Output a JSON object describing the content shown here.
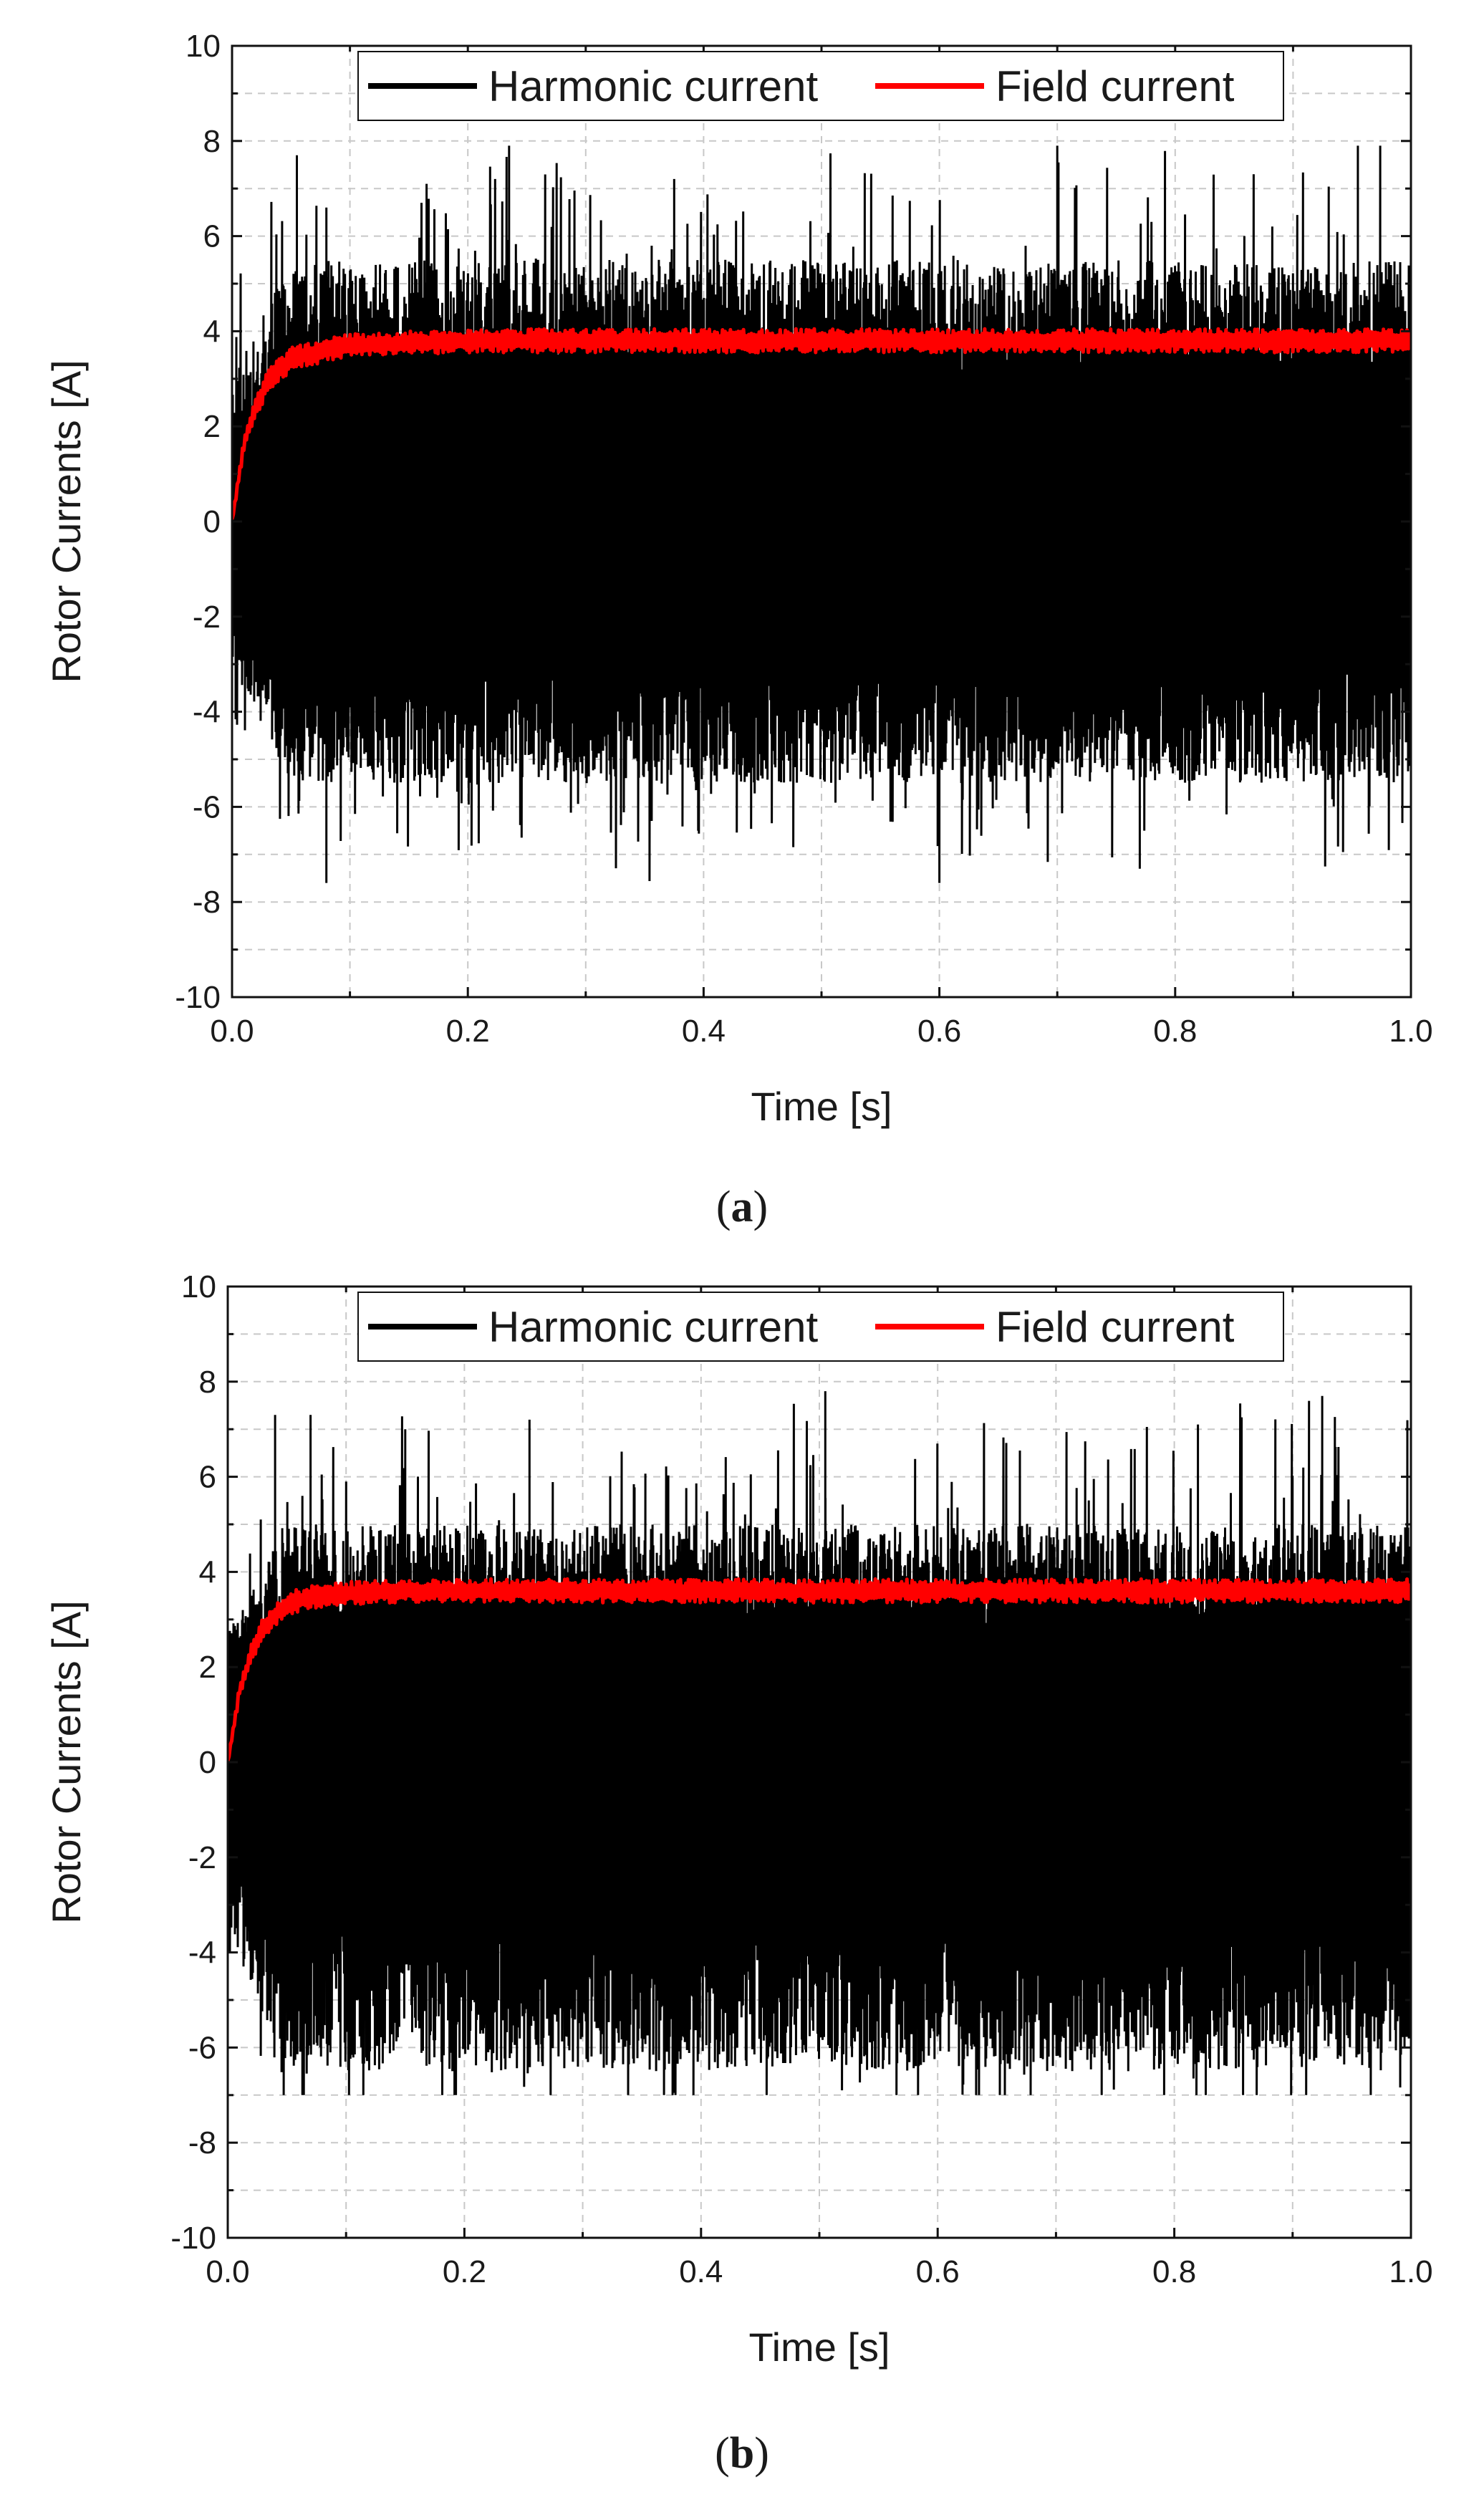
{
  "chart_data": [
    {
      "type": "line",
      "caption": "a",
      "xlabel": "Time [s]",
      "ylabel": "Rotor Currents [A]",
      "xlim": [
        0.0,
        1.0
      ],
      "ylim": [
        -10,
        10
      ],
      "x_ticks": [
        "0.0",
        "0.2",
        "0.4",
        "0.6",
        "0.8",
        "1.0"
      ],
      "y_ticks": [
        "10",
        "8",
        "6",
        "4",
        "2",
        "0",
        "-2",
        "-4",
        "-6",
        "-8",
        "-10"
      ],
      "grid": true,
      "legend_position": "top",
      "series": [
        {
          "name": "Harmonic current",
          "color": "#000000",
          "description_values": {
            "upper_envelope_typical": 5.5,
            "lower_envelope_typical": -5.5,
            "max_peak": 7.9,
            "min_peak": -7.6
          },
          "peaks": [
            {
              "x": 0.055,
              "y": 7.7
            },
            {
              "x": 0.08,
              "y": 6.6
            },
            {
              "x": 0.165,
              "y": 7.1
            },
            {
              "x": 0.235,
              "y": 7.9
            },
            {
              "x": 0.375,
              "y": 7.2
            },
            {
              "x": 0.7,
              "y": 7.9
            },
            {
              "x": 0.955,
              "y": 7.9
            },
            {
              "x": 0.6,
              "y": -7.6
            },
            {
              "x": 0.08,
              "y": -7.6
            },
            {
              "x": 0.77,
              "y": -7.3
            }
          ]
        },
        {
          "name": "Field current",
          "color": "#ff0000",
          "x": [
            0.0,
            0.01,
            0.02,
            0.03,
            0.04,
            0.05,
            0.06,
            0.08,
            0.1,
            0.15,
            0.2,
            0.4,
            0.6,
            0.8,
            1.0
          ],
          "y": [
            0.0,
            1.6,
            2.4,
            2.9,
            3.2,
            3.4,
            3.5,
            3.6,
            3.7,
            3.75,
            3.8,
            3.8,
            3.8,
            3.8,
            3.8
          ],
          "ripple": 0.25
        }
      ]
    },
    {
      "type": "line",
      "caption": "b",
      "xlabel": "Time [s]",
      "ylabel": "Rotor Currents [A]",
      "xlim": [
        0.0,
        1.0
      ],
      "ylim": [
        -10,
        10
      ],
      "x_ticks": [
        "0.0",
        "0.2",
        "0.4",
        "0.6",
        "0.8",
        "1.0"
      ],
      "y_ticks": [
        "10",
        "8",
        "6",
        "4",
        "2",
        "0",
        "-2",
        "-4",
        "-6",
        "-8",
        "-10"
      ],
      "grid": true,
      "legend_position": "top",
      "series": [
        {
          "name": "Harmonic current",
          "color": "#000000",
          "description_values": {
            "upper_envelope_typical": 5.0,
            "lower_envelope_typical": -6.5,
            "max_peak": 7.8,
            "min_peak": -7.0
          },
          "peaks": [
            {
              "x": 0.04,
              "y": 7.3
            },
            {
              "x": 0.07,
              "y": 7.3
            },
            {
              "x": 0.15,
              "y": 7.0
            },
            {
              "x": 0.255,
              "y": 7.2
            },
            {
              "x": 0.505,
              "y": 7.8
            },
            {
              "x": 0.925,
              "y": 7.7
            },
            {
              "x": 0.82,
              "y": 7.1
            }
          ]
        },
        {
          "name": "Field current",
          "color": "#ff0000",
          "x": [
            0.0,
            0.01,
            0.02,
            0.03,
            0.04,
            0.05,
            0.06,
            0.08,
            0.1,
            0.15,
            0.2,
            0.4,
            0.6,
            0.8,
            1.0
          ],
          "y": [
            0.0,
            1.5,
            2.3,
            2.8,
            3.1,
            3.3,
            3.4,
            3.5,
            3.55,
            3.6,
            3.6,
            3.6,
            3.6,
            3.6,
            3.6
          ],
          "ripple": 0.25
        }
      ]
    }
  ],
  "captions": {
    "a_open": "(",
    "a_letter": "a",
    "a_close": ")",
    "b_open": "(",
    "b_letter": "b",
    "b_close": ")"
  }
}
